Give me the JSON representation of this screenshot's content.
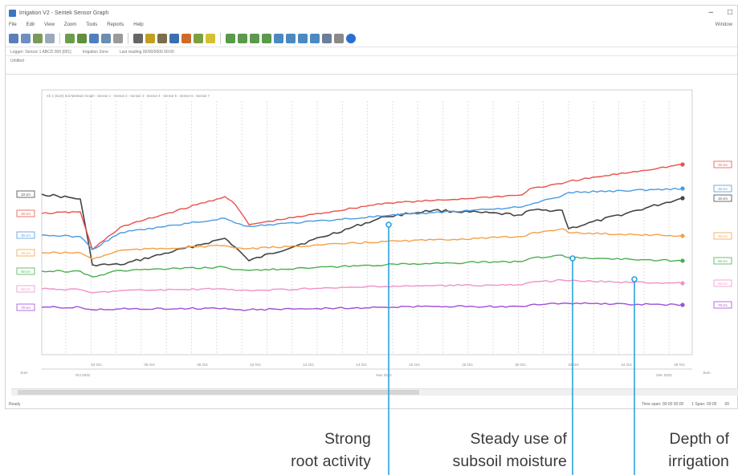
{
  "window": {
    "title": "Irrigation V2 - Sentek Sensor Graph",
    "menu": [
      "File",
      "Edit",
      "View",
      "Zoom",
      "Tools",
      "Reports",
      "Help"
    ],
    "menu_right": "Window",
    "status_strip": [
      "Logger: Sensor 1 ABCD 000 [001]",
      "Irrigation Zone",
      "Last reading 00/00/0000 00:00"
    ],
    "doc_tab": "Untitled",
    "status_bar_left": "Ready",
    "status_bar_right": [
      "Time span: 00:00 00:00",
      "1 Span: 00:00",
      "00"
    ]
  },
  "toolbar": {
    "buttons": [
      "save-icon",
      "print-icon",
      "copy-icon",
      "paste-icon",
      "graph-icon",
      "graph-icon",
      "graph-icon",
      "graph-icon",
      "table-icon",
      "cut-icon",
      "filter-icon",
      "marker-icon",
      "sensor-icon",
      "line-icon",
      "pen-icon",
      "highlight-icon",
      "zoom-in-icon",
      "zoom-out-icon",
      "zoom-in-icon",
      "zoom-out-icon",
      "zoom-in-icon",
      "zoom-out-icon",
      "zoom-in-icon",
      "zoom-out-icon",
      "fit-icon",
      "refresh-icon",
      "help-icon"
    ]
  },
  "chart_data": {
    "type": "line",
    "title": "",
    "xlabel": "",
    "ylabel": "",
    "x_tick_labels": [
      "04 Oct",
      "06 Oct",
      "08 Oct",
      "10 Oct",
      "12 Oct",
      "14 Oct",
      "16 Oct",
      "18 Oct",
      "20 Oct",
      "22 Oct",
      "24 Oct",
      "26 Oct"
    ],
    "x_group_labels": [
      "Oct 2022",
      "Nov 2022",
      "Dec 2022"
    ],
    "legend_header": "Ch 1 (Sum) Soil Moisture Graph - Sensor 1 - Sensor 2 - Sensor 3 - Sensor 4 - Sensor 5 - Sensor 6 - Sensor 7",
    "left_axis_label": "Sum",
    "right_axis_label": "Sum",
    "grid": true,
    "series": [
      {
        "label": "10 cm",
        "color": "#444444",
        "values": [
          242,
          248,
          330,
          330,
          297,
          308,
          325,
          270,
          262,
          268,
          262,
          262,
          285,
          247
        ]
      },
      {
        "label": "20 cm",
        "color": "#e8524b",
        "values": [
          266,
          264,
          311,
          283,
          245,
          255,
          280,
          253,
          250,
          243,
          235,
          229,
          226,
          205
        ]
      },
      {
        "label": "30 cm",
        "color": "#4a9be0",
        "values": [
          293,
          295,
          311,
          290,
          272,
          278,
          282,
          269,
          265,
          258,
          255,
          244,
          240,
          235
        ]
      },
      {
        "label": "40 cm",
        "color": "#f5a048",
        "values": [
          315,
          315,
          323,
          312,
          306,
          309,
          310,
          301,
          299,
          295,
          291,
          285,
          290,
          294
        ]
      },
      {
        "label": "50 cm",
        "color": "#4caf50",
        "values": [
          338,
          338,
          345,
          337,
          333,
          336,
          337,
          330,
          328,
          326,
          322,
          318,
          321,
          325
        ]
      },
      {
        "label": "60 cm",
        "color": "#f092c8",
        "values": [
          360,
          361,
          365,
          362,
          360,
          362,
          362,
          357,
          356,
          355,
          352,
          349,
          350,
          353
        ]
      },
      {
        "label": "70 cm",
        "color": "#a04fd6",
        "values": [
          383,
          383,
          386,
          385,
          384,
          386,
          386,
          383,
          382,
          382,
          380,
          378,
          378,
          380
        ]
      }
    ]
  },
  "annotations": {
    "root_activity": {
      "line1": "Strong",
      "line2": "root activity",
      "color": "#29a3db"
    },
    "subsoil": {
      "line1": "Steady use of",
      "line2": "subsoil moisture",
      "color": "#29a3db"
    },
    "irrigation": {
      "line1": "Depth of",
      "line2": "irrigation",
      "color": "#29a3db"
    }
  }
}
